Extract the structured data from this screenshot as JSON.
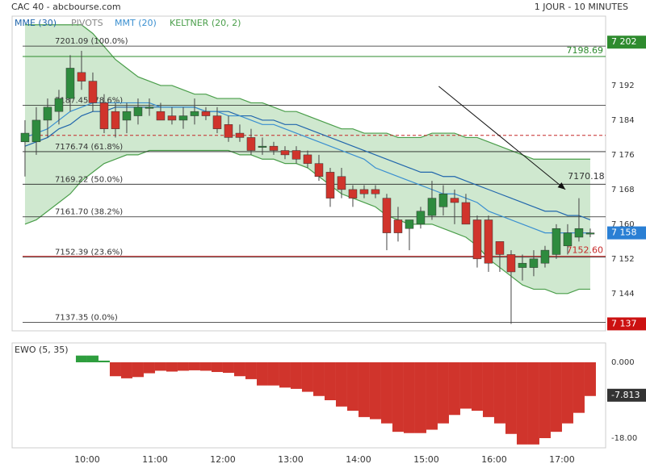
{
  "chart_data": [
    {
      "type": "candlestick",
      "title": "CAC 40 - abcbourse.com",
      "subtitle": "1 JOUR - 10 MINUTES",
      "x": [
        545,
        555,
        565,
        575,
        585,
        595,
        605,
        615,
        625,
        635,
        645,
        655,
        665,
        675,
        685,
        695,
        705,
        715,
        725,
        735,
        745,
        755,
        765,
        775,
        785,
        795,
        805,
        815,
        825,
        835,
        845,
        855,
        865,
        875,
        885,
        895,
        905,
        915,
        925,
        935,
        945,
        955,
        965,
        975,
        985,
        995,
        1005,
        1015,
        1025,
        1035,
        1045
      ],
      "open": [
        7179,
        7179,
        7184,
        7186,
        7189,
        7195,
        7193,
        7188,
        7186,
        7184,
        7185,
        7187,
        7186,
        7185,
        7184,
        7185,
        7186,
        7185,
        7183,
        7181,
        7180,
        7178,
        7178,
        7177,
        7177,
        7176,
        7174,
        7172,
        7171,
        7168,
        7168,
        7168,
        7166,
        7161,
        7159,
        7160,
        7162,
        7164,
        7166,
        7165,
        7161,
        7161,
        7156,
        7153,
        7150,
        7150,
        7151,
        7153,
        7155,
        7157,
        7158
      ],
      "high": [
        7184,
        7187,
        7189,
        7191,
        7199,
        7200,
        7195,
        7190,
        7188,
        7188,
        7189,
        7189,
        7188,
        7187,
        7187,
        7189,
        7187,
        7187,
        7185,
        7183,
        7182,
        7180,
        7179,
        7178,
        7178,
        7177,
        7176,
        7173,
        7173,
        7169,
        7169,
        7169,
        7167,
        7164,
        7161,
        7164,
        7170,
        7169,
        7168,
        7167,
        7162,
        7162,
        7156,
        7154,
        7153,
        7154,
        7155,
        7160,
        7160,
        7166,
        7159
      ],
      "low": [
        7171,
        7176,
        7180,
        7183,
        7186,
        7191,
        7186,
        7181,
        7180,
        7181,
        7183,
        7185,
        7184,
        7183,
        7182,
        7183,
        7184,
        7181,
        7179,
        7179,
        7176,
        7176,
        7176,
        7175,
        7174,
        7173,
        7170,
        7164,
        7166,
        7164,
        7166,
        7166,
        7154,
        7156,
        7154,
        7159,
        7161,
        7162,
        7160,
        7160,
        7150,
        7149,
        7149,
        7137,
        7147,
        7148,
        7150,
        7152,
        7153,
        7156,
        7157
      ],
      "close": [
        7181,
        7184,
        7187,
        7189,
        7196,
        7193,
        7188,
        7182,
        7182,
        7186,
        7187,
        7187,
        7184,
        7184,
        7185,
        7186,
        7185,
        7182,
        7180,
        7180,
        7177,
        7178,
        7177,
        7176,
        7175,
        7174,
        7171,
        7166,
        7168,
        7166,
        7167,
        7167,
        7158,
        7158,
        7161,
        7163,
        7166,
        7167,
        7165,
        7160,
        7152,
        7151,
        7153,
        7149,
        7151,
        7152,
        7154,
        7159,
        7158,
        7159,
        7158
      ],
      "up_color": "#2e8b3e",
      "down_color": "#d0342c",
      "series": [
        {
          "name": "MME (30)",
          "color": "#2166ac",
          "values": [
            7178,
            7179,
            7180,
            7182,
            7183,
            7185,
            7186,
            7186,
            7187,
            7187,
            7187,
            7187,
            7187,
            7187,
            7187,
            7187,
            7186,
            7186,
            7186,
            7185,
            7185,
            7184,
            7184,
            7183,
            7183,
            7182,
            7181,
            7180,
            7179,
            7178,
            7177,
            7176,
            7175,
            7174,
            7173,
            7172,
            7172,
            7171,
            7171,
            7170,
            7169,
            7168,
            7167,
            7166,
            7165,
            7164,
            7163,
            7163,
            7162,
            7162,
            7161
          ]
        },
        {
          "name": "MMT (20)",
          "color": "#3a8fd0",
          "values": [
            7180,
            7181,
            7182,
            7184,
            7186,
            7187,
            7188,
            7188,
            7188,
            7188,
            7188,
            7188,
            7187,
            7187,
            7187,
            7187,
            7186,
            7186,
            7185,
            7185,
            7184,
            7183,
            7183,
            7182,
            7181,
            7180,
            7179,
            7178,
            7177,
            7176,
            7175,
            7173,
            7172,
            7171,
            7170,
            7169,
            7168,
            7167,
            7167,
            7166,
            7165,
            7163,
            7162,
            7161,
            7160,
            7159,
            7158,
            7158,
            7158,
            7158,
            7158
          ]
        }
      ],
      "keltner": {
        "name": "KELTNER (20, 2)",
        "color": "#4a9e4a",
        "fill": "#cfe8cf",
        "upper": [
          7206,
          7206,
          7206,
          7206,
          7206,
          7206,
          7204,
          7201,
          7198,
          7196,
          7194,
          7193,
          7192,
          7192,
          7191,
          7190,
          7190,
          7189,
          7189,
          7189,
          7188,
          7188,
          7187,
          7186,
          7186,
          7185,
          7184,
          7183,
          7182,
          7182,
          7181,
          7181,
          7181,
          7180,
          7180,
          7180,
          7181,
          7181,
          7181,
          7180,
          7180,
          7179,
          7178,
          7177,
          7176,
          7175,
          7175,
          7175,
          7175,
          7175,
          7175
        ],
        "lower": [
          7160,
          7161,
          7163,
          7165,
          7167,
          7170,
          7172,
          7174,
          7175,
          7176,
          7176,
          7177,
          7177,
          7177,
          7177,
          7177,
          7177,
          7177,
          7177,
          7176,
          7176,
          7175,
          7175,
          7174,
          7174,
          7173,
          7171,
          7169,
          7167,
          7166,
          7165,
          7164,
          7162,
          7161,
          7160,
          7160,
          7160,
          7159,
          7158,
          7157,
          7155,
          7152,
          7150,
          7148,
          7146,
          7145,
          7145,
          7144,
          7144,
          7145,
          7145
        ]
      },
      "pivots": {
        "name": "PIVOTS",
        "color": "#888888",
        "levels": [
          {
            "value": 7201.09,
            "label": "7201.09  (100.0%)"
          },
          {
            "value": 7187.45,
            "label": "7187.45  (78.6%)"
          },
          {
            "value": 7176.74,
            "label": "7176.74  (61.8%)"
          },
          {
            "value": 7169.22,
            "label": "7169.22  (50.0%)"
          },
          {
            "value": 7161.7,
            "label": "7161.70  (38.2%)"
          },
          {
            "value": 7152.39,
            "label": "7152.39  (23.6%)"
          },
          {
            "value": 7137.35,
            "label": "7137.35  (0.0%)"
          }
        ]
      },
      "lines": [
        {
          "value": 7198.69,
          "label": "7198.69",
          "color": "#2e8b2e"
        },
        {
          "value": 7152.6,
          "label": "7152.60",
          "color": "#c62828"
        },
        {
          "value": 7180.5,
          "color": "#c62828",
          "dashed": true
        }
      ],
      "arrow": {
        "x": [
          911,
          1023
        ],
        "y": [
          7191.8,
          7168
        ],
        "label": "7170.18"
      },
      "markers": [
        {
          "value": 7202,
          "label": "7 202",
          "color": "#2e8b2e"
        },
        {
          "value": 7158,
          "label": "7 158",
          "color": "#2a7fd4"
        },
        {
          "value": 7137,
          "label": "7 137",
          "color": "#cc1111"
        }
      ],
      "xlim": [
        533.6,
        1058.6
      ],
      "xticks": [
        {
          "value": 600,
          "label": "10:00"
        },
        {
          "value": 660,
          "label": "11:00"
        },
        {
          "value": 720,
          "label": "12:00"
        },
        {
          "value": 780,
          "label": "13:00"
        },
        {
          "value": 840,
          "label": "14:00"
        },
        {
          "value": 900,
          "label": "15:00"
        },
        {
          "value": 960,
          "label": "16:00"
        },
        {
          "value": 1020,
          "label": "17:00"
        }
      ],
      "ylim": [
        7135.4,
        7208
      ],
      "yticks": [
        {
          "value": 7144,
          "label": "7 144"
        },
        {
          "value": 7152,
          "label": "7 152"
        },
        {
          "value": 7160,
          "label": "7 160"
        },
        {
          "value": 7168,
          "label": "7 168"
        },
        {
          "value": 7176,
          "label": "7 176"
        },
        {
          "value": 7184,
          "label": "7 184"
        },
        {
          "value": 7192,
          "label": "7 192"
        }
      ]
    },
    {
      "type": "bar",
      "title": "EWO (5, 35)",
      "up_color": "#2e9e3e",
      "down_color": "#d0342c",
      "values": [
        null,
        null,
        null,
        null,
        null,
        1.6,
        1.6,
        0.4,
        -3.3,
        -3.8,
        -3.5,
        -2.6,
        -2,
        -2.2,
        -2,
        -1.9,
        -2,
        -2.3,
        -2.5,
        -3.3,
        -4,
        -5.5,
        -5.5,
        -6,
        -6.3,
        -7,
        -8,
        -9,
        -10.5,
        -11.5,
        -13,
        -13.5,
        -14.5,
        -16.5,
        -16.8,
        -16.8,
        -16,
        -14.5,
        -12.5,
        -11,
        -11.5,
        -13,
        -14.5,
        -17,
        -19.5,
        -19.5,
        -18,
        -16.5,
        -14.5,
        -12,
        -8
      ],
      "ylim": [
        -20.3,
        4.6
      ],
      "yticks": [
        {
          "value": 0,
          "label": "0.000"
        },
        {
          "value": -18,
          "label": "-18.00"
        }
      ],
      "marker": {
        "value": -7.813,
        "label": "-7.813",
        "color": "#333333"
      }
    }
  ]
}
